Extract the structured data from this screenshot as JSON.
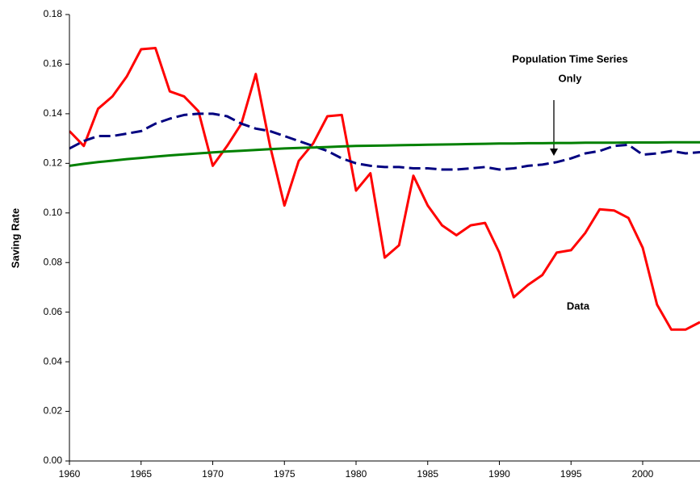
{
  "chart_data": {
    "type": "line",
    "y_label": "Saving Rate",
    "x": [
      1960,
      1961,
      1962,
      1963,
      1964,
      1965,
      1966,
      1967,
      1968,
      1969,
      1970,
      1971,
      1972,
      1973,
      1974,
      1975,
      1976,
      1977,
      1978,
      1979,
      1980,
      1981,
      1982,
      1983,
      1984,
      1985,
      1986,
      1987,
      1988,
      1989,
      1990,
      1991,
      1992,
      1993,
      1994,
      1995,
      1996,
      1997,
      1998,
      1999,
      2000,
      2001,
      2002,
      2003,
      2004
    ],
    "series": [
      {
        "color": "#ff0000",
        "dash": false,
        "values": [
          0.133,
          0.127,
          0.142,
          0.147,
          0.155,
          0.166,
          0.1665,
          0.149,
          0.147,
          0.141,
          0.119,
          0.127,
          0.136,
          0.156,
          0.127,
          0.103,
          0.121,
          0.128,
          0.139,
          0.1395,
          0.109,
          0.116,
          0.082,
          0.087,
          0.115,
          0.103,
          0.095,
          0.091,
          0.095,
          0.096,
          0.084,
          0.066,
          0.071,
          0.075,
          0.084,
          0.085,
          0.092,
          0.1015,
          0.101,
          0.098,
          0.086,
          0.063,
          0.053,
          0.053,
          0.056
        ]
      },
      {
        "color": "#000080",
        "dash": true,
        "values": [
          0.126,
          0.129,
          0.131,
          0.131,
          0.132,
          0.133,
          0.136,
          0.138,
          0.1395,
          0.14,
          0.14,
          0.139,
          0.136,
          0.134,
          0.133,
          0.131,
          0.129,
          0.127,
          0.125,
          0.122,
          0.12,
          0.119,
          0.1185,
          0.1185,
          0.118,
          0.118,
          0.1175,
          0.1175,
          0.118,
          0.1185,
          0.1175,
          0.118,
          0.119,
          0.1195,
          0.1205,
          0.122,
          0.124,
          0.125,
          0.127,
          0.1275,
          0.1235,
          0.124,
          0.125,
          0.124,
          0.1245
        ]
      },
      {
        "color": "#008000",
        "dash": false,
        "values": [
          0.119,
          0.1198,
          0.1205,
          0.1211,
          0.1217,
          0.1222,
          0.1227,
          0.1232,
          0.1236,
          0.124,
          0.1244,
          0.1248,
          0.1251,
          0.1254,
          0.1257,
          0.126,
          0.1262,
          0.1264,
          0.1266,
          0.1268,
          0.127,
          0.1271,
          0.1272,
          0.1273,
          0.1274,
          0.1275,
          0.1276,
          0.1277,
          0.1278,
          0.1279,
          0.128,
          0.128,
          0.1281,
          0.1281,
          0.1282,
          0.1282,
          0.1283,
          0.1283,
          0.1283,
          0.1284,
          0.1284,
          0.1284,
          0.1285,
          0.1285,
          0.1285
        ]
      }
    ],
    "annotations": [
      {
        "lines": [
          "Population Time Series",
          "Only"
        ]
      },
      {
        "lines": [
          "Data"
        ]
      }
    ],
    "xlim": [
      1960,
      2004
    ],
    "xticks": [
      1960,
      1965,
      1970,
      1975,
      1980,
      1985,
      1990,
      1995,
      2000
    ],
    "ylim": [
      0,
      0.18
    ],
    "yticks": [
      {
        "value": 0,
        "label": "0.00"
      },
      {
        "value": 0.02,
        "label": "0.02"
      },
      {
        "value": 0.04,
        "label": "0.04"
      },
      {
        "value": 0.06,
        "label": "0.06"
      },
      {
        "value": 0.08,
        "label": "0.08"
      },
      {
        "value": 0.1,
        "label": "0.10"
      },
      {
        "value": 0.12,
        "label": "0.12"
      },
      {
        "value": 0.14,
        "label": "0.14"
      },
      {
        "value": 0.16,
        "label": "0.16"
      },
      {
        "value": 0.18,
        "label": "0.18"
      }
    ],
    "grid": false
  }
}
